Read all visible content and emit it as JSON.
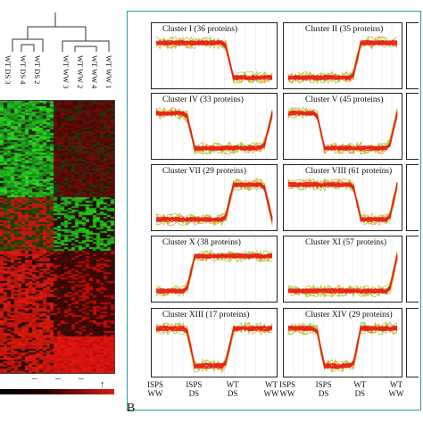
{
  "panel_a": {
    "column_labels": [
      "WT DS 3",
      "WT DS 4",
      "WT DS 2",
      "WT WW 3",
      "WT WW 2",
      "WT WW 4",
      "WT WW 1"
    ],
    "scale_marker": "↑"
  },
  "panel_b": {
    "label": "B",
    "x_categories": [
      {
        "line1": "ISPS",
        "line2": "WW"
      },
      {
        "line1": "ISPS",
        "line2": "DS"
      },
      {
        "line1": "WT",
        "line2": "DS"
      },
      {
        "line1": "WT",
        "line2": "WW"
      }
    ],
    "clusters": [
      {
        "title": "Cluster I (36 proteins)",
        "profile": [
          1,
          1,
          0,
          0
        ]
      },
      {
        "title": "Cluster II (35 proteins)",
        "profile": [
          0,
          0,
          1,
          1
        ]
      },
      {
        "title": "Cluster IV (33 proteins)",
        "profile": [
          1,
          0,
          0,
          1
        ]
      },
      {
        "title": "Cluster V (45 proteins)",
        "profile": [
          1,
          0,
          0,
          1
        ]
      },
      {
        "title": "Cluster VII (29 proteins)",
        "profile": [
          0,
          0,
          1,
          0
        ]
      },
      {
        "title": "Cluster VIII (61 proteins)",
        "profile": [
          1,
          1,
          0,
          1
        ]
      },
      {
        "title": "Cluster X (38 proteins)",
        "profile": [
          0,
          1,
          1,
          1
        ]
      },
      {
        "title": "Cluster XI (57 proteins)",
        "profile": [
          0,
          0,
          0,
          1
        ]
      },
      {
        "title": "Cluster XIII (17 proteins)",
        "profile": [
          1,
          0,
          1,
          1
        ]
      },
      {
        "title": "Cluster XIV (29 proteins)",
        "profile": [
          1,
          0,
          1,
          1
        ]
      }
    ]
  },
  "colors": {
    "panel_border": "#2f9a9a",
    "box_border": "#222222",
    "line_main": "#e8231a",
    "line_alt": "#f7931e",
    "line_light": "#9bd23c",
    "heat_green": "#19d21a",
    "heat_red": "#d41a12",
    "heat_black": "#140404"
  }
}
